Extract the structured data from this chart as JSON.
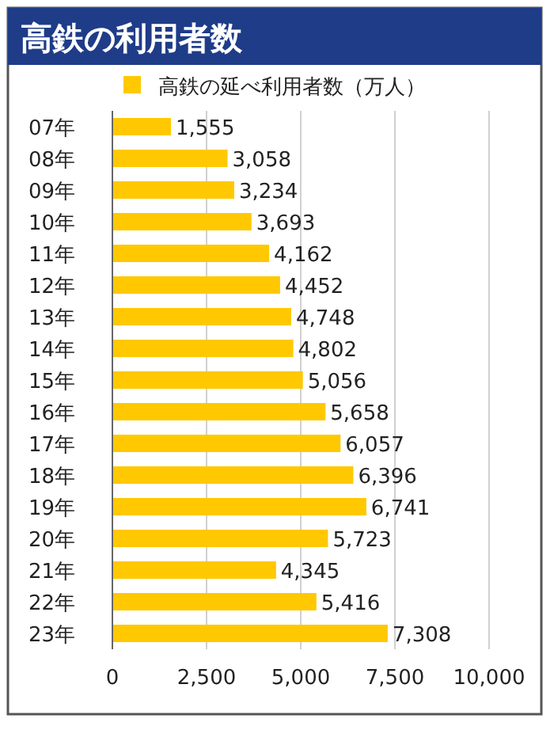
{
  "chart_data": {
    "type": "bar",
    "orientation": "horizontal",
    "title": "高鉄の利用者数",
    "categories": [
      "07年",
      "08年",
      "09年",
      "10年",
      "11年",
      "12年",
      "13年",
      "14年",
      "15年",
      "16年",
      "17年",
      "18年",
      "19年",
      "20年",
      "21年",
      "22年",
      "23年"
    ],
    "series": [
      {
        "name": "高鉄の延べ利用者数（万人）",
        "color": "#ffc800",
        "values": [
          1555,
          3058,
          3234,
          3693,
          4162,
          4452,
          4748,
          4802,
          5056,
          5658,
          6057,
          6396,
          6741,
          5723,
          4345,
          5416,
          7308
        ],
        "value_labels": [
          "1,555",
          "3,058",
          "3,234",
          "3,693",
          "4,162",
          "4,452",
          "4,748",
          "4,802",
          "5,056",
          "5,658",
          "6,057",
          "6,396",
          "6,741",
          "5,723",
          "4,345",
          "5,416",
          "7,308"
        ]
      }
    ],
    "xlim": [
      0,
      10000
    ],
    "xticks": [
      0,
      {
        "value": 2500,
        "label": "2,500"
      },
      {
        "value": 5000,
        "label": "5,000"
      },
      {
        "value": 7500,
        "label": "7,500"
      },
      {
        "value": 10000,
        "label": "10,000"
      }
    ],
    "grid": "x",
    "legend": "top"
  }
}
